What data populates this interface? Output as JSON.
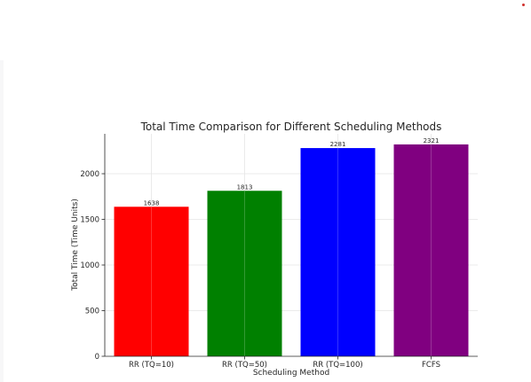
{
  "page": {
    "background": "#ffffff",
    "edge_color": "#f7f7f8",
    "status_dot_color": "#d0312d"
  },
  "chart_data": {
    "type": "bar",
    "title": "Total Time Comparison for Different Scheduling Methods",
    "xlabel": "Scheduling Method",
    "ylabel": "Total Time (Time Units)",
    "categories": [
      "RR (TQ=10)",
      "RR (TQ=50)",
      "RR (TQ=100)",
      "FCFS"
    ],
    "values": [
      1638,
      1813,
      2281,
      2321
    ],
    "data_labels": [
      "1638",
      "1813",
      "2281",
      "2321"
    ],
    "colors": [
      "#ff0000",
      "#008000",
      "#0000ff",
      "#800080"
    ],
    "ylim": [
      0,
      2437
    ],
    "yticks": [
      0,
      500,
      1000,
      1500,
      2000
    ],
    "ytick_labels": [
      "0",
      "500",
      "1000",
      "1500",
      "2000"
    ],
    "grid": true,
    "legend": false
  }
}
